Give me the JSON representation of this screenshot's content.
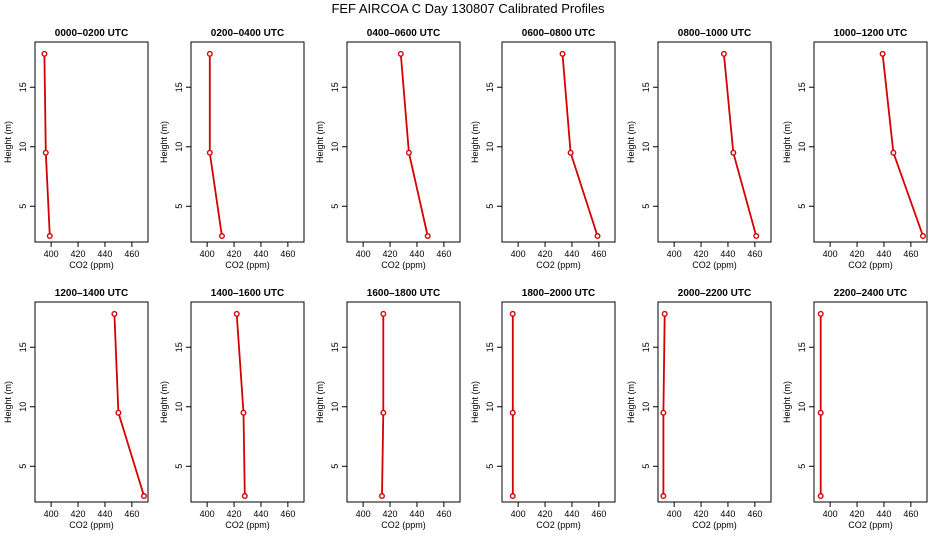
{
  "figure": {
    "title": "FEF AIRCOA C  Day 130807  Calibrated Profiles"
  },
  "chart_data": {
    "type": "line",
    "xlabel": "CO2 (ppm)",
    "ylabel": "Height (m)",
    "xlim": [
      388,
      472
    ],
    "ylim": [
      2,
      18.8
    ],
    "xticks": [
      400,
      420,
      440,
      460
    ],
    "yticks": [
      5,
      10,
      15
    ],
    "heights": [
      17.8,
      9.5,
      2.5
    ],
    "series_color": "#d40000",
    "panels": [
      {
        "title": "0000–0200 UTC",
        "co2": [
          395,
          396,
          399
        ]
      },
      {
        "title": "0200–0400 UTC",
        "co2": [
          402,
          402,
          411
        ]
      },
      {
        "title": "0400–0600 UTC",
        "co2": [
          428,
          434,
          448
        ]
      },
      {
        "title": "0600–0800 UTC",
        "co2": [
          433,
          439,
          459
        ]
      },
      {
        "title": "0800–1000 UTC",
        "co2": [
          437,
          444,
          461
        ]
      },
      {
        "title": "1000–1200 UTC",
        "co2": [
          439,
          447,
          469
        ]
      },
      {
        "title": "1200–1400 UTC",
        "co2": [
          447,
          450,
          469
        ]
      },
      {
        "title": "1400–1600 UTC",
        "co2": [
          422,
          427,
          428
        ]
      },
      {
        "title": "1600–1800 UTC",
        "co2": [
          415,
          415,
          414
        ]
      },
      {
        "title": "1800–2000 UTC",
        "co2": [
          396,
          396,
          396
        ]
      },
      {
        "title": "2000–2200 UTC",
        "co2": [
          393,
          392,
          392
        ]
      },
      {
        "title": "2200–2400 UTC",
        "co2": [
          393,
          393,
          393
        ]
      }
    ]
  }
}
